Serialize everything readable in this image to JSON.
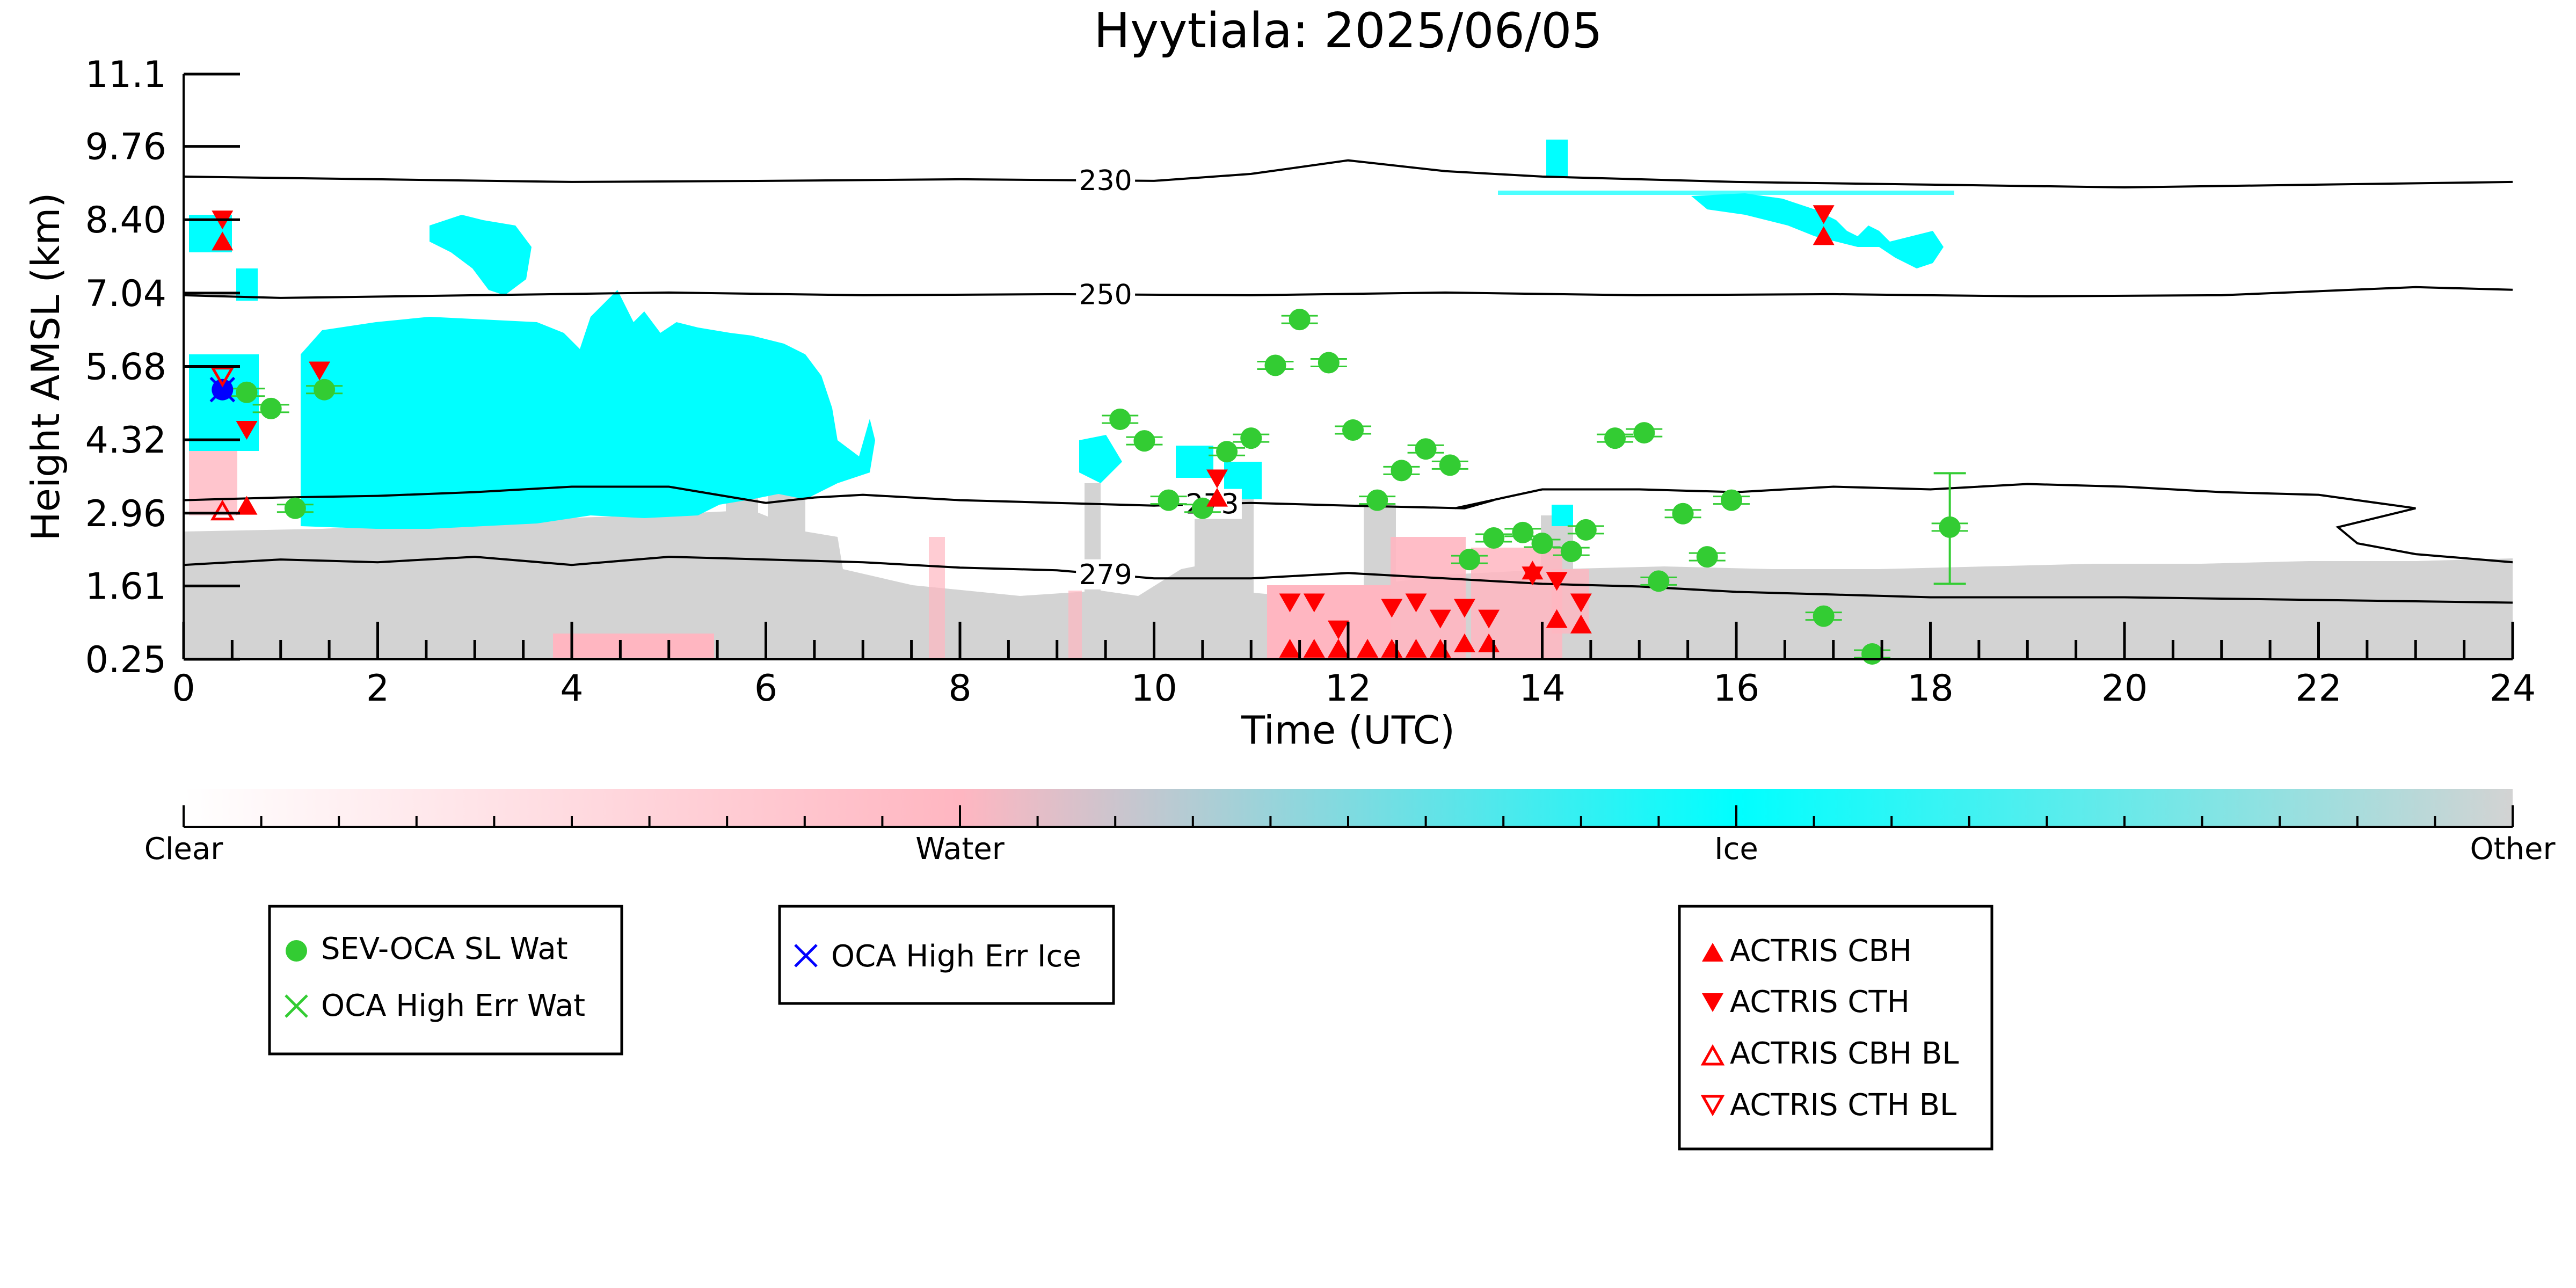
{
  "chart_data": {
    "type": "scatter",
    "title": "Hyytiala: 2025/06/05",
    "xlabel": "Time (UTC)",
    "ylabel": "Height AMSL (km)",
    "xlim": [
      0,
      24
    ],
    "ylim": [
      0.25,
      11.1
    ],
    "x_ticks": [
      "0",
      "2",
      "4",
      "6",
      "8",
      "10",
      "12",
      "14",
      "16",
      "18",
      "20",
      "22",
      "24"
    ],
    "y_ticks": [
      "0.25",
      "1.61",
      "2.96",
      "4.32",
      "5.68",
      "7.04",
      "8.40",
      "9.76",
      "11.1"
    ],
    "y_tick_values": [
      0.25,
      1.61,
      2.96,
      4.32,
      5.68,
      7.04,
      8.4,
      9.76,
      11.1
    ],
    "contours": [
      {
        "label": "230",
        "label_x": 9.5,
        "points": [
          [
            0,
            9.2
          ],
          [
            2,
            9.15
          ],
          [
            4,
            9.1
          ],
          [
            6,
            9.12
          ],
          [
            8,
            9.15
          ],
          [
            10,
            9.12
          ],
          [
            11,
            9.25
          ],
          [
            12,
            9.5
          ],
          [
            13,
            9.3
          ],
          [
            14,
            9.2
          ],
          [
            16,
            9.1
          ],
          [
            18,
            9.05
          ],
          [
            20,
            9.0
          ],
          [
            22,
            9.05
          ],
          [
            24,
            9.1
          ]
        ]
      },
      {
        "label": "250",
        "label_x": 9.5,
        "points": [
          [
            0,
            7.0
          ],
          [
            1,
            6.95
          ],
          [
            3,
            7.0
          ],
          [
            5,
            7.05
          ],
          [
            7,
            7.0
          ],
          [
            9,
            7.02
          ],
          [
            11,
            7.0
          ],
          [
            13,
            7.05
          ],
          [
            15,
            7.0
          ],
          [
            17,
            7.02
          ],
          [
            19,
            6.98
          ],
          [
            21,
            7.0
          ],
          [
            23,
            7.15
          ],
          [
            24,
            7.1
          ]
        ]
      },
      {
        "label": "273",
        "label_x": 10.6,
        "points": [
          [
            0,
            3.2
          ],
          [
            1,
            3.25
          ],
          [
            2,
            3.28
          ],
          [
            3,
            3.35
          ],
          [
            4,
            3.45
          ],
          [
            5,
            3.45
          ],
          [
            6,
            3.15
          ],
          [
            6.5,
            3.25
          ],
          [
            7,
            3.3
          ],
          [
            8,
            3.2
          ],
          [
            9,
            3.15
          ],
          [
            10,
            3.1
          ],
          [
            11,
            3.15
          ],
          [
            12,
            3.1
          ],
          [
            13.2,
            3.05
          ],
          [
            13.5,
            3.2
          ],
          [
            13.1,
            3.05
          ],
          [
            14,
            3.4
          ],
          [
            15,
            3.4
          ],
          [
            16,
            3.35
          ],
          [
            17,
            3.45
          ],
          [
            18,
            3.4
          ],
          [
            19,
            3.5
          ],
          [
            20,
            3.45
          ],
          [
            21,
            3.35
          ],
          [
            22,
            3.3
          ],
          [
            23,
            3.05
          ],
          [
            22.2,
            2.7
          ],
          [
            22.4,
            2.4
          ],
          [
            23,
            2.2
          ],
          [
            24,
            2.05
          ]
        ]
      },
      {
        "label": "279",
        "label_x": 9.5,
        "points": [
          [
            0,
            2.0
          ],
          [
            1,
            2.1
          ],
          [
            2,
            2.05
          ],
          [
            3,
            2.15
          ],
          [
            4,
            2.0
          ],
          [
            5,
            2.15
          ],
          [
            6,
            2.1
          ],
          [
            7,
            2.05
          ],
          [
            8,
            1.95
          ],
          [
            9,
            1.9
          ],
          [
            10,
            1.75
          ],
          [
            11,
            1.75
          ],
          [
            12,
            1.85
          ],
          [
            13,
            1.75
          ],
          [
            14,
            1.65
          ],
          [
            15,
            1.6
          ],
          [
            16,
            1.5
          ],
          [
            17,
            1.45
          ],
          [
            18,
            1.4
          ],
          [
            20,
            1.4
          ],
          [
            22,
            1.35
          ],
          [
            24,
            1.3
          ]
        ]
      }
    ],
    "series": [
      {
        "name": "SEV-OCA SL Wat",
        "marker": "circle-filled",
        "color": "#33cc33",
        "points": [
          [
            0.65,
            5.2
          ],
          [
            0.9,
            4.9
          ],
          [
            1.15,
            3.05
          ],
          [
            1.45,
            5.25
          ],
          [
            9.65,
            4.7
          ],
          [
            9.9,
            4.3
          ],
          [
            10.15,
            3.2
          ],
          [
            10.5,
            3.05
          ],
          [
            10.75,
            4.1
          ],
          [
            11.0,
            4.35
          ],
          [
            11.25,
            5.7
          ],
          [
            11.5,
            6.55
          ],
          [
            11.8,
            5.75
          ],
          [
            12.05,
            4.5
          ],
          [
            12.3,
            3.2
          ],
          [
            12.55,
            3.75
          ],
          [
            12.8,
            4.15
          ],
          [
            13.05,
            3.85
          ],
          [
            13.25,
            2.1
          ],
          [
            13.5,
            2.5
          ],
          [
            13.8,
            2.6
          ],
          [
            14.0,
            2.4
          ],
          [
            14.3,
            2.25
          ],
          [
            14.45,
            2.65
          ],
          [
            14.75,
            4.35
          ],
          [
            15.05,
            4.45
          ],
          [
            15.2,
            1.7
          ],
          [
            15.45,
            2.95
          ],
          [
            15.7,
            2.15
          ],
          [
            15.95,
            3.2
          ],
          [
            16.9,
            1.05
          ],
          [
            17.4,
            0.35
          ],
          [
            18.2,
            2.7
          ]
        ]
      },
      {
        "name": "OCA High Err Wat",
        "marker": "x",
        "color": "#33cc33",
        "points": []
      },
      {
        "name": "OCA High Err Ice",
        "marker": "x",
        "color": "#0000ff",
        "points": [
          [
            0.4,
            5.25
          ]
        ]
      },
      {
        "name": "ACTRIS CBH",
        "marker": "triangle-up-filled",
        "color": "#ff0000",
        "points": [
          [
            0.4,
            8.0
          ],
          [
            0.65,
            3.1
          ],
          [
            10.65,
            3.25
          ],
          [
            11.4,
            0.45
          ],
          [
            11.65,
            0.45
          ],
          [
            11.9,
            0.45
          ],
          [
            12.2,
            0.45
          ],
          [
            12.45,
            0.45
          ],
          [
            12.7,
            0.45
          ],
          [
            12.95,
            0.45
          ],
          [
            13.2,
            0.55
          ],
          [
            13.45,
            0.55
          ],
          [
            13.9,
            1.9
          ],
          [
            14.15,
            1.0
          ],
          [
            14.4,
            0.9
          ],
          [
            16.9,
            8.1
          ]
        ]
      },
      {
        "name": "ACTRIS CTH",
        "marker": "triangle-down-filled",
        "color": "#ff0000",
        "points": [
          [
            0.4,
            8.4
          ],
          [
            0.65,
            4.5
          ],
          [
            1.4,
            5.6
          ],
          [
            10.65,
            3.6
          ],
          [
            11.4,
            1.3
          ],
          [
            11.65,
            1.3
          ],
          [
            11.9,
            0.8
          ],
          [
            12.45,
            1.2
          ],
          [
            12.7,
            1.3
          ],
          [
            12.95,
            1.0
          ],
          [
            13.2,
            1.2
          ],
          [
            13.45,
            1.0
          ],
          [
            13.9,
            1.8
          ],
          [
            14.15,
            1.7
          ],
          [
            14.4,
            1.3
          ],
          [
            16.9,
            8.5
          ]
        ]
      },
      {
        "name": "ACTRIS CBH BL",
        "marker": "triangle-up-open",
        "color": "#ff0000",
        "points": [
          [
            0.4,
            3.0
          ]
        ]
      },
      {
        "name": "ACTRIS CTH BL",
        "marker": "triangle-down-open",
        "color": "#ff0000",
        "points": [
          [
            0.4,
            5.5
          ]
        ]
      }
    ],
    "error_bars": [
      {
        "x": 18.2,
        "low": 1.65,
        "high": 3.7,
        "color": "#33cc33"
      }
    ],
    "colorbar": {
      "ticks": [
        "Clear",
        "Water",
        "Ice",
        "Other"
      ],
      "colors": [
        "#ffffff",
        "#ffb6c1",
        "#00ffff",
        "#d3d3d3"
      ]
    },
    "legends": [
      {
        "entries": [
          "SEV-OCA SL Wat",
          "OCA High Err Wat"
        ]
      },
      {
        "entries": [
          "OCA High Err Ice"
        ]
      },
      {
        "entries": [
          "ACTRIS CBH",
          "ACTRIS CTH",
          "ACTRIS CBH BL",
          "ACTRIS CTH BL"
        ]
      }
    ]
  }
}
